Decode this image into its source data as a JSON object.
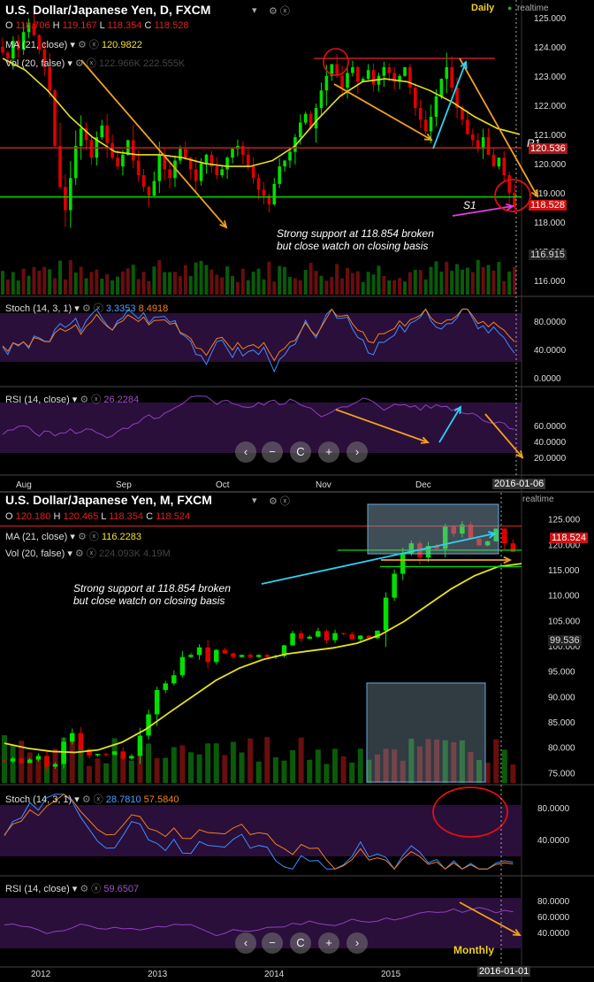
{
  "panel_top": {
    "title": "U.S. Dollar/Japanese Yen, D, FXCM",
    "timeframe_label": "Daily",
    "realtime_label": "realtime",
    "ohlc": {
      "o_label": "O",
      "o": "118.706",
      "h_label": "H",
      "h": "119.167",
      "l_label": "L",
      "l": "118.354",
      "c_label": "C",
      "c": "118.528"
    },
    "ma_label": "MA (21, close)",
    "ma_value": "120.9822",
    "vol_label": "Vol (20, false)",
    "vol_values": "122.966K  222.555K",
    "stoch_label": "Stoch (14, 3, 1)",
    "stoch_k": "3.3353",
    "stoch_d": "8.4918",
    "rsi_label": "RSI (14, close)",
    "rsi_value": "26.2284",
    "annotation_line1": "Strong support at 118.854 broken",
    "annotation_line2": "but close watch on closing basis",
    "r1_label": "R1",
    "s1_label": "S1",
    "price_tags": {
      "r1": "120.536",
      "last": "118.528",
      "vol": "116.915"
    },
    "date_tag": "2016-01-06"
  },
  "panel_bottom": {
    "title": "U.S. Dollar/Japanese Yen, M, FXCM",
    "timeframe_label": "Monthly",
    "realtime_label": "realtime",
    "ohlc": {
      "o_label": "O",
      "o": "120.180",
      "h_label": "H",
      "h": "120.465",
      "l_label": "L",
      "l": "118.354",
      "c_label": "C",
      "c": "118.524"
    },
    "ma_label": "MA (21, close)",
    "ma_value": "116.2283",
    "vol_label": "Vol (20, false)",
    "vol_values": "224.093K  4.19M",
    "stoch_label": "Stoch (14, 3, 1)",
    "stoch_k": "28.7810",
    "stoch_d": "57.5840",
    "rsi_label": "RSI (14, close)",
    "rsi_value": "59.6507",
    "annotation_line1": "Strong support at 118.854 broken",
    "annotation_line2": "but close watch on closing basis",
    "price_tags": {
      "last": "118.524",
      "ma": "99.536"
    },
    "date_tag": "2016-01-01"
  },
  "nav_buttons": [
    "‹",
    "−",
    "C",
    "+",
    "›"
  ],
  "colors": {
    "bull": "#00e000",
    "bear": "#e00000",
    "ma": "#e8e020",
    "annot": "#f0a020",
    "cyan": "#30d0f0",
    "support": "#00dd00",
    "resist": "#c02020",
    "panel": "#2a0f3a"
  },
  "chart_data": [
    {
      "type": "candlestick",
      "title": "U.S. Dollar/Japanese Yen, D, FXCM",
      "y_ticks": [
        116,
        117,
        118,
        119,
        120,
        121,
        122,
        123,
        124,
        125
      ],
      "ylim": [
        115.6,
        125.6
      ],
      "x_ticks": [
        "Aug",
        "Sep",
        "Oct",
        "Nov",
        "Dec"
      ],
      "support_level": 118.854,
      "resistance_level": 123.6,
      "r1_level": 120.536,
      "close_trend": [
        123.8,
        123.6,
        124.2,
        123.9,
        124.5,
        124.8,
        124.4,
        123.9,
        123.3,
        122.5,
        120.6,
        119.2,
        118.4,
        119.5,
        120.6,
        121.2,
        120.8,
        120.2,
        120.9,
        121.3,
        120.7,
        120.2,
        119.9,
        120.3,
        120.8,
        120.1,
        119.6,
        119.2,
        118.9,
        119.4,
        120.3,
        119.8,
        119.5,
        120.1,
        120.5,
        120.2,
        119.8,
        119.4,
        120.0,
        120.3,
        119.9,
        119.6,
        119.8,
        120.2,
        120.5,
        120.6,
        120.3,
        119.9,
        119.5,
        119.1,
        118.9,
        118.6,
        119.3,
        119.9,
        120.1,
        120.4,
        120.9,
        121.4,
        121.7,
        121.2,
        121.9,
        122.5,
        123.0,
        123.4,
        123.0,
        122.6,
        123.1,
        123.3,
        122.8,
        122.9,
        123.2,
        122.7,
        123.0,
        123.3,
        123.1,
        122.8,
        123.0,
        123.3,
        122.6,
        121.9,
        121.5,
        121.1,
        121.6,
        122.3,
        122.9,
        123.3,
        122.6,
        121.9,
        121.5,
        121.0,
        120.8,
        120.5,
        120.9,
        120.3,
        119.9,
        120.2,
        119.6,
        119.0,
        118.5
      ],
      "ma21_trend": [
        123.6,
        123.2,
        122.5,
        121.6,
        120.9,
        120.4,
        120.3,
        120.3,
        120.2,
        120.0,
        119.9,
        119.9,
        120.1,
        120.6,
        121.5,
        122.3,
        122.8,
        122.9,
        122.8,
        122.5,
        122.1,
        121.6,
        121.2,
        121.0
      ],
      "stoch": {
        "label": "Stoch (14, 3, 1)",
        "k": 3.3353,
        "d": 8.4918,
        "y_ticks": [
          0,
          40,
          80
        ]
      },
      "rsi": {
        "label": "RSI (14, close)",
        "value": 26.2284,
        "y_ticks": [
          20,
          40,
          60
        ]
      }
    },
    {
      "type": "candlestick",
      "title": "U.S. Dollar/Japanese Yen, M, FXCM",
      "y_ticks": [
        75,
        80,
        85,
        90,
        95,
        100,
        105,
        110,
        115,
        120,
        125
      ],
      "ylim": [
        73.5,
        126.5
      ],
      "x_ticks": [
        "2012",
        "2013",
        "2014",
        "2015"
      ],
      "support_level": 118.854,
      "close_trend": [
        77.2,
        77.8,
        76.9,
        77.6,
        78.3,
        76.2,
        76.7,
        81.1,
        82.8,
        79.6,
        78.4,
        78.7,
        78.5,
        79.2,
        77.8,
        78.3,
        82.3,
        86.5,
        91.3,
        92.6,
        94.2,
        97.8,
        98.2,
        99.7,
        96.8,
        99.2,
        98.5,
        97.8,
        98.2,
        97.8,
        98.2,
        97.8,
        98.0,
        100.1,
        102.5,
        101.4,
        101.8,
        102.9,
        101.1,
        102.5,
        102.3,
        101.3,
        102.0,
        101.5,
        103.0,
        109.5,
        114.2,
        118.1,
        120.2,
        117.4,
        119.7,
        119.1,
        123.5,
        122.1,
        123.9,
        121.1,
        119.8,
        120.6,
        123.1,
        120.2,
        118.5
      ],
      "ma21_trend": [
        80.8,
        79.8,
        79.2,
        79.0,
        79.5,
        81.0,
        83.5,
        86.8,
        90.0,
        93.2,
        95.6,
        97.3,
        98.4,
        99.0,
        99.6,
        100.5,
        102.2,
        104.8,
        108.0,
        111.2,
        113.8,
        115.6,
        116.2
      ],
      "stoch": {
        "label": "Stoch (14, 3, 1)",
        "k": 28.781,
        "d": 57.584,
        "y_ticks": [
          40,
          80
        ]
      },
      "rsi": {
        "label": "RSI (14, close)",
        "value": 59.6507,
        "y_ticks": [
          40,
          60,
          80
        ]
      }
    }
  ]
}
